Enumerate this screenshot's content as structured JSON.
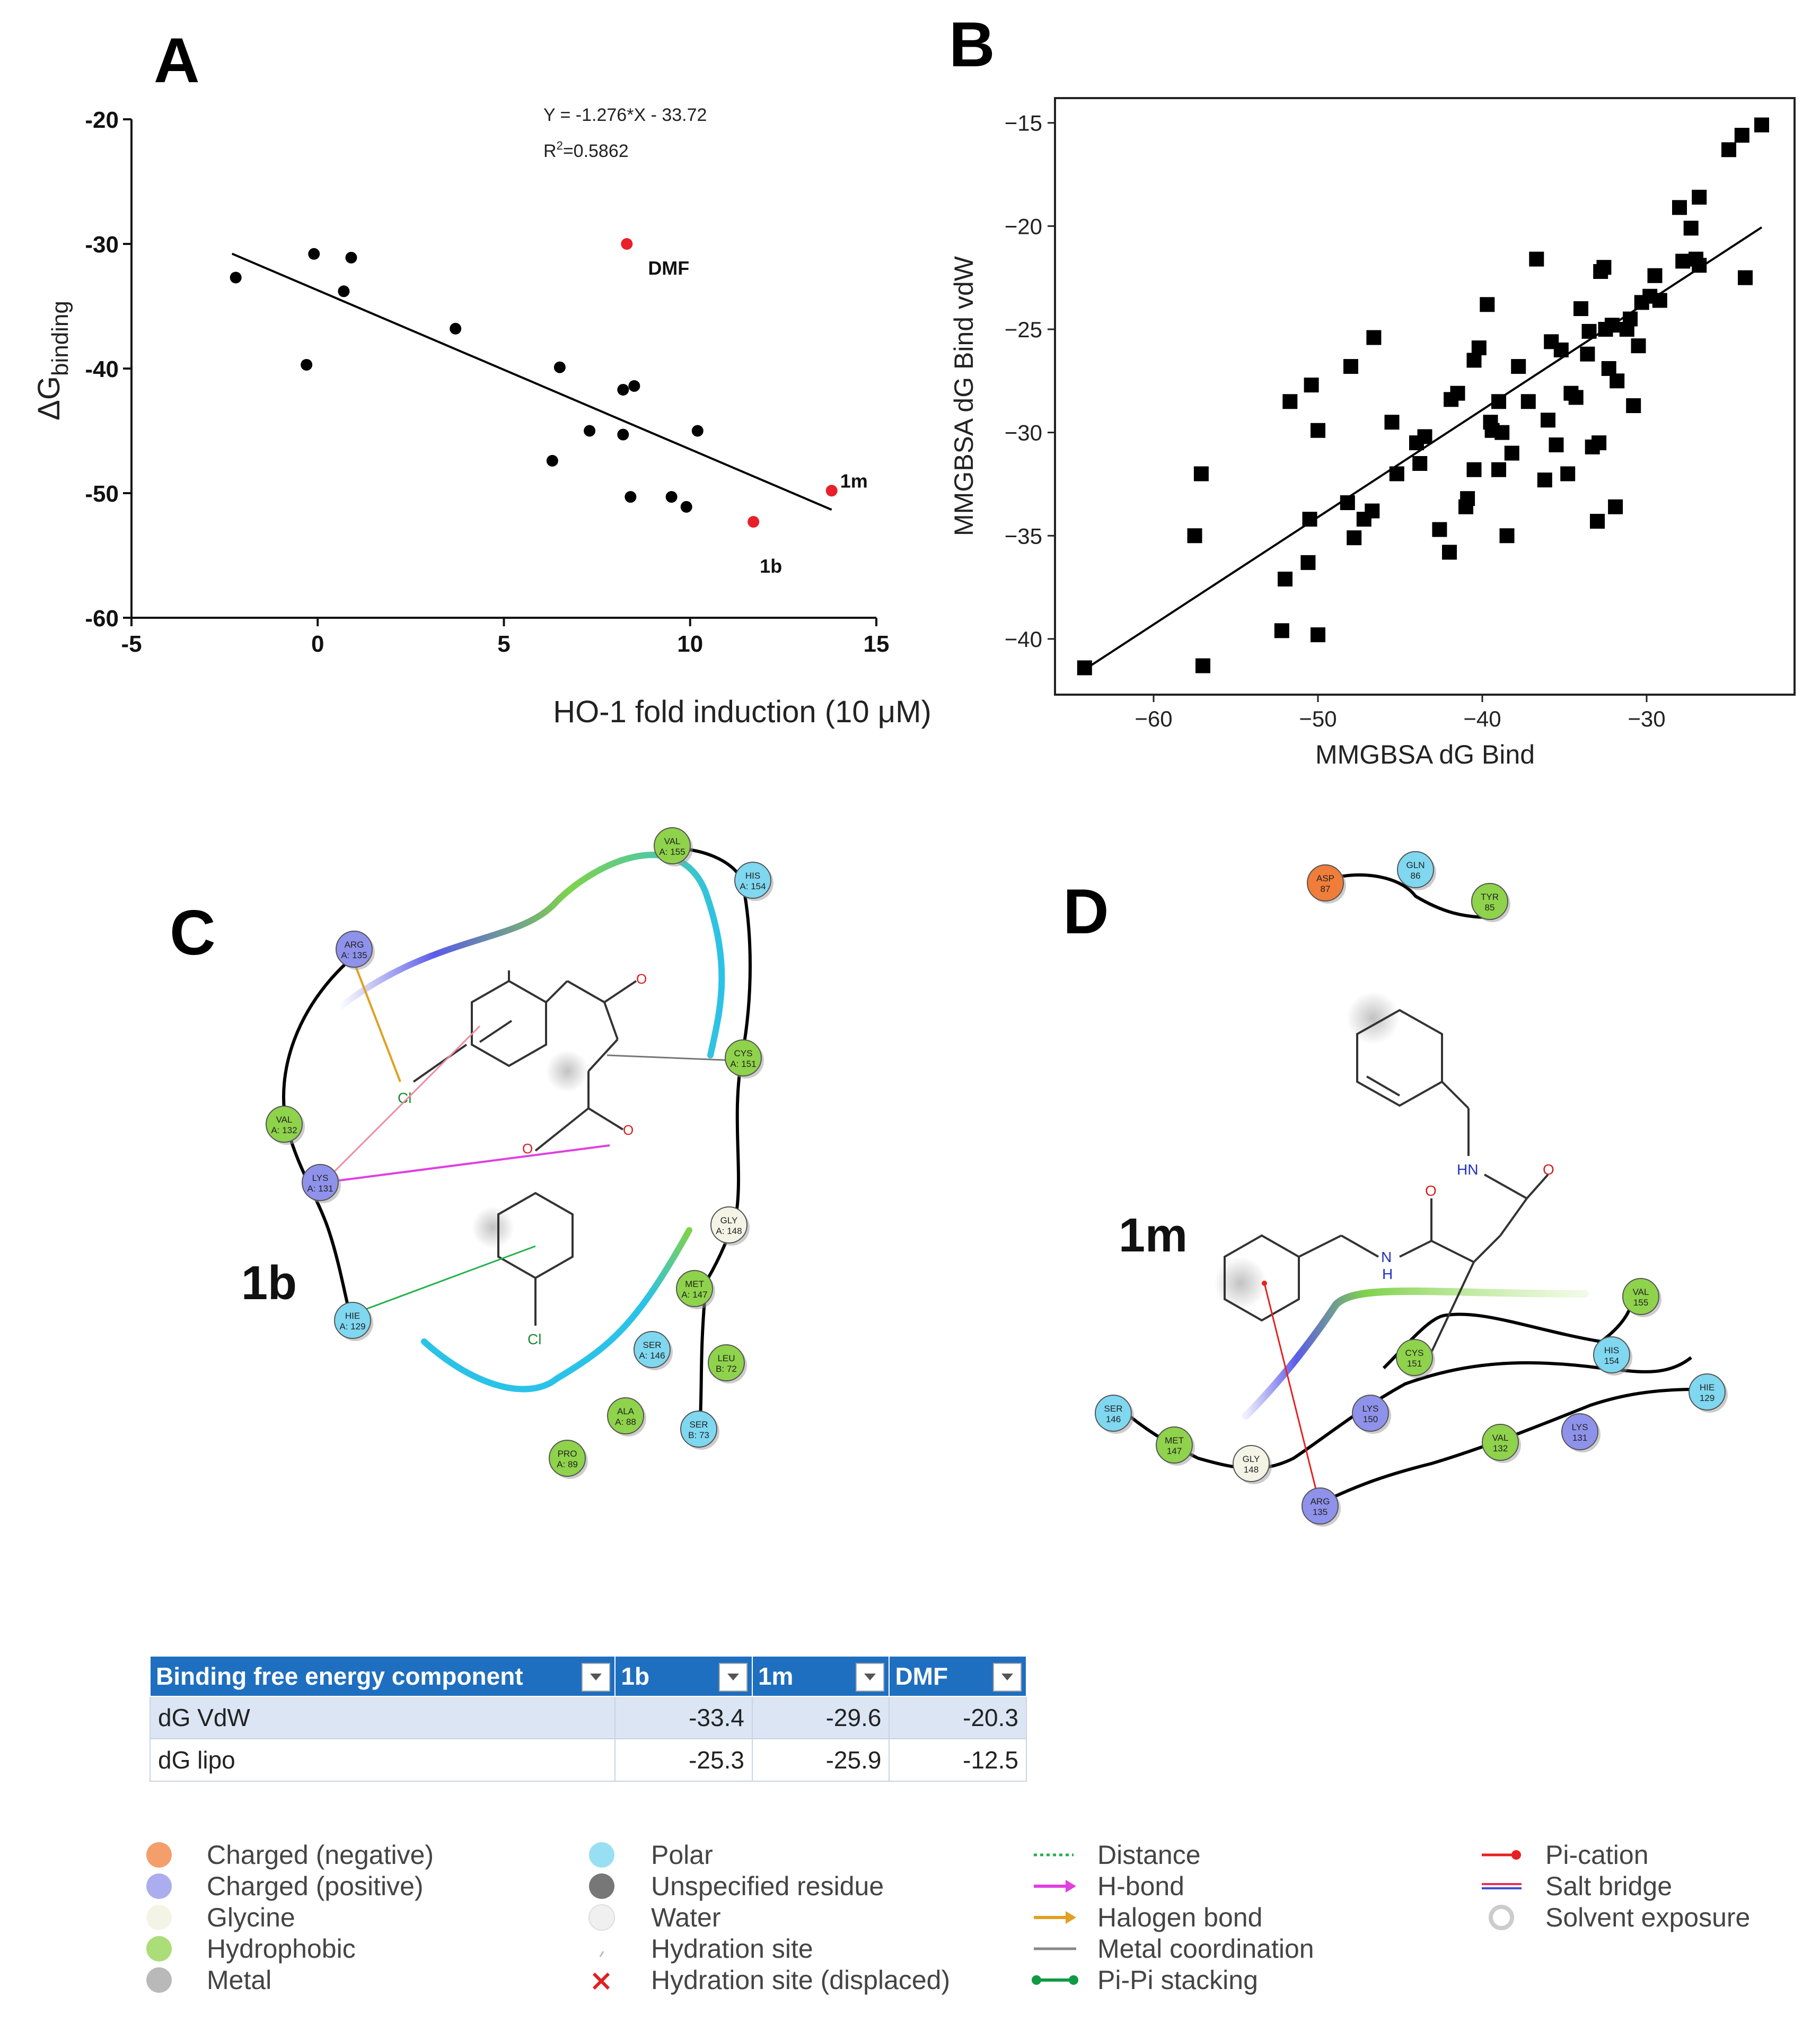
{
  "chart_data": [
    {
      "panel": "A",
      "type": "scatter",
      "xlabel": "HO-1 fold induction (10 μM)",
      "ylabel": "ΔG",
      "ylabel_sub": "binding",
      "xlim": [
        -5,
        15
      ],
      "ylim": [
        -60,
        -20
      ],
      "xticks": [
        "-5",
        "0",
        "5",
        "10",
        "15"
      ],
      "yticks": [
        "-60",
        "-50",
        "-40",
        "-30",
        "-20"
      ],
      "equation": "Y = -1.276*X - 33.72",
      "r2_prefix": "R",
      "r2_sup": "2",
      "r2_value": "=0.5862",
      "fit": {
        "slope": -1.276,
        "intercept": -33.72,
        "x_range": [
          -2.3,
          13.8
        ]
      },
      "points": [
        {
          "x": -2.2,
          "y": -32.7
        },
        {
          "x": -0.1,
          "y": -30.8
        },
        {
          "x": 0.9,
          "y": -31.1
        },
        {
          "x": 0.7,
          "y": -33.8
        },
        {
          "x": -0.3,
          "y": -39.7
        },
        {
          "x": 3.7,
          "y": -36.8
        },
        {
          "x": 6.5,
          "y": -39.9
        },
        {
          "x": 8.2,
          "y": -41.7
        },
        {
          "x": 8.5,
          "y": -41.4
        },
        {
          "x": 7.3,
          "y": -45.0
        },
        {
          "x": 8.2,
          "y": -45.3
        },
        {
          "x": 6.3,
          "y": -47.4
        },
        {
          "x": 10.2,
          "y": -45.0
        },
        {
          "x": 8.4,
          "y": -50.3
        },
        {
          "x": 9.5,
          "y": -50.3
        },
        {
          "x": 9.9,
          "y": -51.1
        }
      ],
      "highlighted_points": [
        {
          "x": 8.3,
          "y": -30.0,
          "label": "DMF"
        },
        {
          "x": 13.8,
          "y": -49.8,
          "label": "1m"
        },
        {
          "x": 11.7,
          "y": -52.3,
          "label": "1b"
        }
      ],
      "colors": {
        "points": "#000000",
        "highlight": "#e8202a",
        "line": "#000000"
      }
    },
    {
      "panel": "B",
      "type": "scatter",
      "xlabel": "MMGBSA dG Bind",
      "ylabel": "MMGBSA dG Bind vdW",
      "xlim": [
        -66,
        -21
      ],
      "ylim": [
        -42.7,
        -13.8
      ],
      "xticks": [
        "−60",
        "−50",
        "−40",
        "−30"
      ],
      "xtick_values": [
        -60,
        -50,
        -40,
        -30
      ],
      "yticks": [
        "−15",
        "−20",
        "−25",
        "−30",
        "−35",
        "−40"
      ],
      "ytick_values": [
        -15,
        -20,
        -25,
        -30,
        -35,
        -40
      ],
      "fit": {
        "slope": 0.52,
        "intercept": -8.1,
        "x_range": [
          -64.2,
          -23.0
        ]
      },
      "points": [
        {
          "x": -64.2,
          "y": -41.4
        },
        {
          "x": -57.5,
          "y": -35.0
        },
        {
          "x": -57.1,
          "y": -32.0
        },
        {
          "x": -57.0,
          "y": -41.3
        },
        {
          "x": -52.2,
          "y": -39.6
        },
        {
          "x": -52.0,
          "y": -37.1
        },
        {
          "x": -51.7,
          "y": -28.5
        },
        {
          "x": -50.6,
          "y": -36.3
        },
        {
          "x": -50.5,
          "y": -34.2
        },
        {
          "x": -50.4,
          "y": -27.7
        },
        {
          "x": -50.0,
          "y": -29.9
        },
        {
          "x": -50.0,
          "y": -39.8
        },
        {
          "x": -48.2,
          "y": -33.4
        },
        {
          "x": -48.0,
          "y": -26.8
        },
        {
          "x": -47.8,
          "y": -35.1
        },
        {
          "x": -47.2,
          "y": -34.2
        },
        {
          "x": -46.7,
          "y": -33.8
        },
        {
          "x": -46.6,
          "y": -25.4
        },
        {
          "x": -45.5,
          "y": -29.5
        },
        {
          "x": -45.2,
          "y": -32.0
        },
        {
          "x": -44.0,
          "y": -30.5
        },
        {
          "x": -43.8,
          "y": -31.5
        },
        {
          "x": -43.5,
          "y": -30.2
        },
        {
          "x": -42.6,
          "y": -34.7
        },
        {
          "x": -42.0,
          "y": -35.8
        },
        {
          "x": -41.9,
          "y": -28.4
        },
        {
          "x": -41.5,
          "y": -28.1
        },
        {
          "x": -41.0,
          "y": -33.6
        },
        {
          "x": -40.9,
          "y": -33.2
        },
        {
          "x": -40.5,
          "y": -31.8
        },
        {
          "x": -40.5,
          "y": -26.5
        },
        {
          "x": -40.2,
          "y": -25.9
        },
        {
          "x": -39.7,
          "y": -23.8
        },
        {
          "x": -39.5,
          "y": -29.5
        },
        {
          "x": -39.4,
          "y": -29.9
        },
        {
          "x": -39.0,
          "y": -28.5
        },
        {
          "x": -39.0,
          "y": -31.8
        },
        {
          "x": -38.8,
          "y": -30.0
        },
        {
          "x": -38.5,
          "y": -35.0
        },
        {
          "x": -38.2,
          "y": -31.0
        },
        {
          "x": -37.8,
          "y": -26.8
        },
        {
          "x": -37.2,
          "y": -28.5
        },
        {
          "x": -36.7,
          "y": -21.6
        },
        {
          "x": -36.2,
          "y": -32.3
        },
        {
          "x": -36.0,
          "y": -29.4
        },
        {
          "x": -35.8,
          "y": -25.6
        },
        {
          "x": -35.5,
          "y": -30.6
        },
        {
          "x": -35.2,
          "y": -26.0
        },
        {
          "x": -34.8,
          "y": -32.0
        },
        {
          "x": -34.6,
          "y": -28.1
        },
        {
          "x": -34.3,
          "y": -28.3
        },
        {
          "x": -34.0,
          "y": -24.0
        },
        {
          "x": -33.6,
          "y": -26.2
        },
        {
          "x": -33.5,
          "y": -25.1
        },
        {
          "x": -33.3,
          "y": -30.7
        },
        {
          "x": -33.0,
          "y": -34.3
        },
        {
          "x": -32.9,
          "y": -30.5
        },
        {
          "x": -32.8,
          "y": -22.2
        },
        {
          "x": -32.6,
          "y": -22.0
        },
        {
          "x": -32.5,
          "y": -25.0
        },
        {
          "x": -32.3,
          "y": -26.9
        },
        {
          "x": -32.1,
          "y": -24.8
        },
        {
          "x": -31.9,
          "y": -33.6
        },
        {
          "x": -31.8,
          "y": -27.5
        },
        {
          "x": -31.2,
          "y": -25.0
        },
        {
          "x": -31.0,
          "y": -24.5
        },
        {
          "x": -30.8,
          "y": -28.7
        },
        {
          "x": -30.5,
          "y": -25.8
        },
        {
          "x": -30.3,
          "y": -23.7
        },
        {
          "x": -29.8,
          "y": -23.4
        },
        {
          "x": -29.5,
          "y": -22.4
        },
        {
          "x": -29.2,
          "y": -23.6
        },
        {
          "x": -28.0,
          "y": -19.1
        },
        {
          "x": -27.8,
          "y": -21.7
        },
        {
          "x": -27.3,
          "y": -20.1
        },
        {
          "x": -27.0,
          "y": -21.6
        },
        {
          "x": -26.8,
          "y": -18.6
        },
        {
          "x": -26.8,
          "y": -21.9
        },
        {
          "x": -25.0,
          "y": -16.3
        },
        {
          "x": -24.2,
          "y": -15.6
        },
        {
          "x": -24.0,
          "y": -22.5
        },
        {
          "x": -23.0,
          "y": -15.1
        }
      ],
      "colors": {
        "points": "#000000",
        "line": "#000000"
      }
    }
  ],
  "panels": {
    "a": "A",
    "b": "B",
    "c": "C",
    "d": "D"
  },
  "panel_c": {
    "ligand_label": "1b",
    "atoms": {
      "cl_top": "Cl",
      "cl_bottom": "Cl",
      "o": "O"
    },
    "residues": [
      {
        "name": "VAL",
        "num": "A: 155",
        "type": "hydrophobic"
      },
      {
        "name": "HIS",
        "num": "A: 154",
        "type": "polar"
      },
      {
        "name": "ARG",
        "num": "A: 135",
        "type": "positive"
      },
      {
        "name": "CYS",
        "num": "A: 151",
        "type": "hydrophobic"
      },
      {
        "name": "VAL",
        "num": "A: 132",
        "type": "hydrophobic"
      },
      {
        "name": "LYS",
        "num": "A: 131",
        "type": "positive"
      },
      {
        "name": "GLY",
        "num": "A: 148",
        "type": "glycine"
      },
      {
        "name": "MET",
        "num": "A: 147",
        "type": "hydrophobic"
      },
      {
        "name": "HIE",
        "num": "A: 129",
        "type": "polar"
      },
      {
        "name": "SER",
        "num": "A: 146",
        "type": "polar"
      },
      {
        "name": "LEU",
        "num": "B: 72",
        "type": "hydrophobic"
      },
      {
        "name": "ALA",
        "num": "A: 88",
        "type": "hydrophobic"
      },
      {
        "name": "SER",
        "num": "B: 73",
        "type": "polar"
      },
      {
        "name": "PRO",
        "num": "A: 89",
        "type": "hydrophobic"
      }
    ]
  },
  "panel_d": {
    "ligand_label": "1m",
    "atoms": {
      "hn": "HN",
      "nh_n": "N",
      "nh_h": "H",
      "o": "O"
    },
    "residues": [
      {
        "name": "ASP",
        "num": "87",
        "type": "negative"
      },
      {
        "name": "GLN",
        "num": "86",
        "type": "polar"
      },
      {
        "name": "TYR",
        "num": "85",
        "type": "hydrophobic"
      },
      {
        "name": "VAL",
        "num": "155",
        "type": "hydrophobic"
      },
      {
        "name": "CYS",
        "num": "151",
        "type": "hydrophobic"
      },
      {
        "name": "HIS",
        "num": "154",
        "type": "polar"
      },
      {
        "name": "HIE",
        "num": "129",
        "type": "polar"
      },
      {
        "name": "SER",
        "num": "146",
        "type": "polar"
      },
      {
        "name": "LYS",
        "num": "150",
        "type": "positive"
      },
      {
        "name": "MET",
        "num": "147",
        "type": "hydrophobic"
      },
      {
        "name": "VAL",
        "num": "132",
        "type": "hydrophobic"
      },
      {
        "name": "LYS",
        "num": "131",
        "type": "positive"
      },
      {
        "name": "GLY",
        "num": "148",
        "type": "glycine"
      },
      {
        "name": "ARG",
        "num": "135",
        "type": "positive"
      }
    ]
  },
  "residue_colors": {
    "negative": "#f07d3a",
    "positive": "#8f92ea",
    "glycine": "#f4f4e6",
    "hydrophobic": "#8fd24b",
    "polar": "#7fd7f0",
    "metal": "#a8a8a8"
  },
  "table": {
    "headers": [
      "Binding free energy component",
      "1b",
      "1m",
      "DMF"
    ],
    "rows": [
      {
        "label": "dG VdW",
        "v1b": "-33.4",
        "v1m": "-29.6",
        "vdmf": "-20.3"
      },
      {
        "label": "dG lipo",
        "v1b": "-25.3",
        "v1m": "-25.9",
        "vdmf": "-12.5"
      }
    ]
  },
  "legend": {
    "col1": [
      "Charged (negative)",
      "Charged (positive)",
      "Glycine",
      "Hydrophobic",
      "Metal"
    ],
    "col2": [
      "Polar",
      "Unspecified residue",
      "Water",
      "Hydration site",
      "Hydration site (displaced)"
    ],
    "col3": [
      "Distance",
      "H-bond",
      "Halogen bond",
      "Metal coordination",
      "Pi-Pi stacking"
    ],
    "col4": [
      "Pi-cation",
      "Salt bridge",
      "Solvent exposure"
    ],
    "colors": {
      "distance": "#22b14c",
      "hbond": "#e040e0",
      "halogen": "#e0a020",
      "metal_coord": "#888888",
      "pipi": "#119944",
      "picat": "#e82020",
      "salt_a": "#e83060",
      "salt_b": "#4050d0"
    }
  }
}
